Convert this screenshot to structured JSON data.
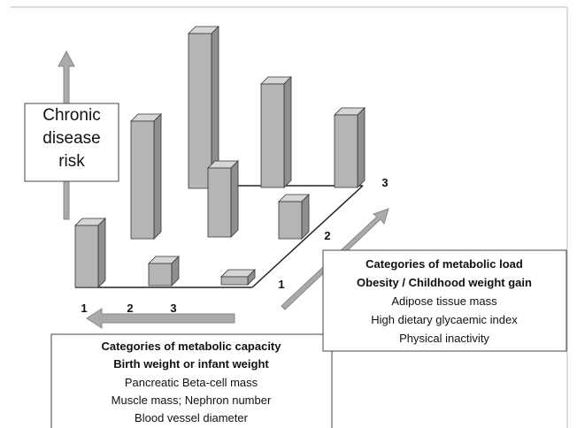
{
  "risk_label": [
    "Chronic",
    "disease",
    "risk"
  ],
  "capacity_ticks": [
    "1",
    "2",
    "3"
  ],
  "load_ticks": [
    "1",
    "2",
    "3"
  ],
  "capacity": {
    "title": "Categories of metabolic capacity",
    "subtitle": "Birth weight or infant weight",
    "items": [
      "Pancreatic Beta-cell mass",
      "Muscle mass; Nephron number",
      "Blood vessel diameter"
    ]
  },
  "load": {
    "title": "Categories of metabolic load",
    "subtitle": "Obesity / Childhood weight gain",
    "items": [
      "Adipose tissue mass",
      "High dietary glycaemic index",
      "Physical inactivity"
    ]
  }
}
